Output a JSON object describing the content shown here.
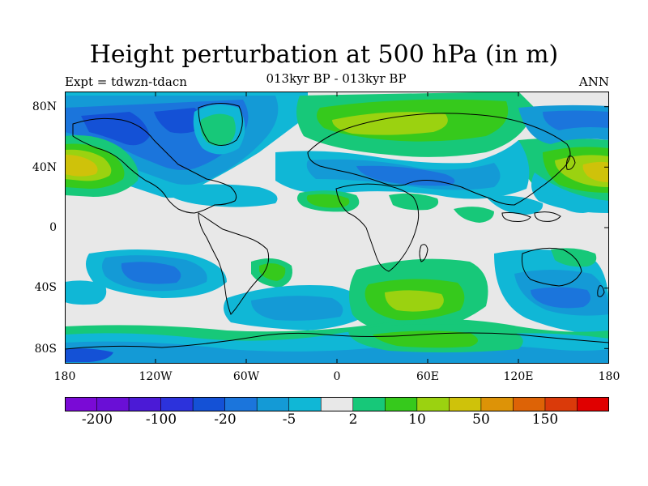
{
  "title": "Height perturbation at 500 hPa (in m)",
  "subtitle": "013kyr BP - 013kyr BP",
  "expt_label": "Expt = tdwzn-tdacn",
  "season": "ANN",
  "lat_labels": [
    "80N",
    "40N",
    "0",
    "40S",
    "80S"
  ],
  "lon_labels": [
    "180",
    "120W",
    "60W",
    "0",
    "60E",
    "120E",
    "180"
  ],
  "colorbar": {
    "colors": [
      "#7a0ad6",
      "#6a0fd6",
      "#4b1ad6",
      "#2c32dc",
      "#1451d6",
      "#1b75dc",
      "#149ad6",
      "#10b7d6",
      "#e8e8e8",
      "#17c879",
      "#36c91c",
      "#9bd210",
      "#cfc20a",
      "#dd9307",
      "#dd6306",
      "#da3a0a",
      "#e00000"
    ],
    "labels": [
      "-200",
      "-100",
      "-20",
      "-5",
      "2",
      "10",
      "50",
      "150"
    ]
  },
  "colors": {
    "neutral": "#e8e8e8",
    "light_blue": "#10b7d6",
    "mid_blue": "#149ad6",
    "blue": "#1b75dc",
    "deep_blue": "#1451d6",
    "green": "#17c879",
    "bright_green": "#36c91c",
    "yellow_green": "#9bd210",
    "gold": "#cfc20a"
  }
}
